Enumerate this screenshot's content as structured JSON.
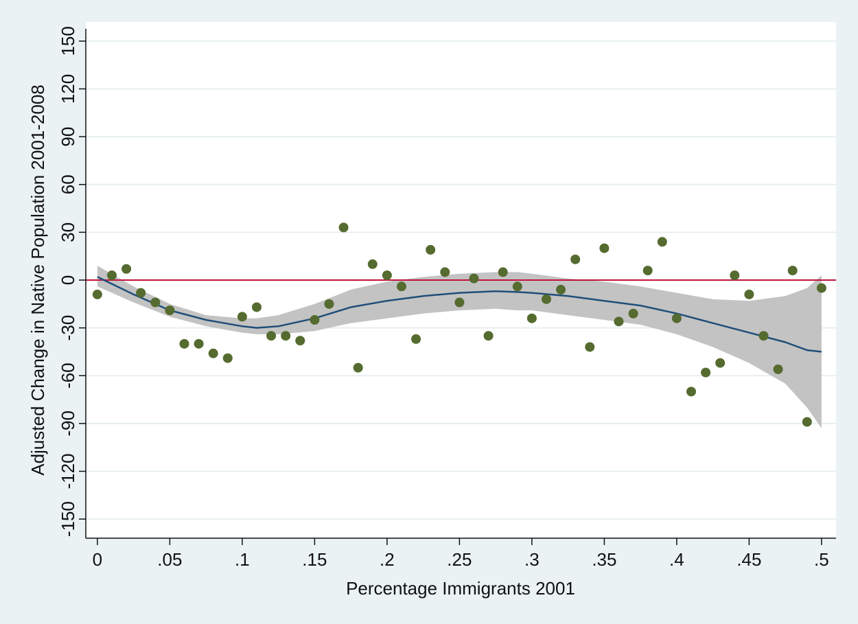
{
  "chart_data": {
    "type": "scatter",
    "xlabel": "Percentage Immigrants 2001",
    "ylabel": "Adjusted Change in Native Population 2001-2008",
    "xlim": [
      -0.008,
      0.51
    ],
    "ylim": [
      -162,
      162
    ],
    "x_ticks": [
      0,
      0.05,
      0.1,
      0.15,
      0.2,
      0.25,
      0.3,
      0.35,
      0.4,
      0.45,
      0.5
    ],
    "x_tick_labels": [
      "0",
      ".05",
      ".1",
      ".15",
      ".2",
      ".25",
      ".3",
      ".35",
      ".4",
      ".45",
      ".5"
    ],
    "y_ticks": [
      -150,
      -120,
      -90,
      -60,
      -30,
      0,
      30,
      60,
      90,
      120,
      150
    ],
    "y_tick_labels": [
      "-150",
      "-120",
      "-90",
      "-60",
      "-30",
      "0",
      "30",
      "60",
      "90",
      "120",
      "150"
    ],
    "grid": true,
    "reference_line": {
      "y": 0,
      "color": "#c0143c"
    },
    "series": [
      {
        "kind": "points",
        "color": "#556b2f",
        "x": [
          0,
          0.01,
          0.02,
          0.03,
          0.04,
          0.05,
          0.06,
          0.07,
          0.08,
          0.09,
          0.1,
          0.11,
          0.12,
          0.13,
          0.14,
          0.15,
          0.16,
          0.17,
          0.18,
          0.19,
          0.2,
          0.21,
          0.22,
          0.23,
          0.24,
          0.25,
          0.26,
          0.27,
          0.28,
          0.29,
          0.3,
          0.31,
          0.32,
          0.33,
          0.34,
          0.35,
          0.36,
          0.37,
          0.38,
          0.39,
          0.4,
          0.41,
          0.42,
          0.43,
          0.44,
          0.45,
          0.46,
          0.47,
          0.48,
          0.49,
          0.5
        ],
        "y": [
          -9,
          3,
          7,
          -8,
          -14,
          -19,
          -40,
          -40,
          -46,
          -49,
          -23,
          -17,
          -35,
          -35,
          -38,
          -25,
          -15,
          33,
          -55,
          10,
          3,
          -4,
          -37,
          19,
          5,
          -14,
          1,
          -35,
          5,
          -4,
          -24,
          -12,
          -6,
          13,
          -42,
          20,
          -26,
          -21,
          6,
          24,
          -24,
          -70,
          -58,
          -52,
          3,
          -9,
          -35,
          -56,
          6,
          -89,
          -5
        ]
      },
      {
        "kind": "fit",
        "color": "#1f4e79",
        "x": [
          0,
          0.025,
          0.05,
          0.075,
          0.1,
          0.11,
          0.125,
          0.15,
          0.175,
          0.2,
          0.225,
          0.25,
          0.275,
          0.29,
          0.3,
          0.325,
          0.35,
          0.375,
          0.4,
          0.425,
          0.45,
          0.475,
          0.49,
          0.5
        ],
        "y": [
          2,
          -9,
          -19,
          -25,
          -29,
          -30,
          -29,
          -24,
          -17,
          -13,
          -10,
          -8,
          -7,
          -7.5,
          -8,
          -10,
          -13,
          -16,
          -21,
          -27,
          -33,
          -39,
          -44,
          -45
        ],
        "ci_lower": [
          -4,
          -14,
          -23,
          -29,
          -33,
          -34,
          -34,
          -32,
          -27,
          -24,
          -21,
          -19,
          -18,
          -19,
          -19,
          -22,
          -25,
          -28,
          -34,
          -42,
          -52,
          -65,
          -80,
          -93
        ],
        "ci_upper": [
          9,
          -4,
          -15,
          -22,
          -24,
          -24,
          -22,
          -15,
          -6,
          -1,
          2,
          4,
          5,
          5,
          4,
          1,
          -1,
          -4,
          -8,
          -12,
          -13,
          -10,
          -5,
          3
        ],
        "ci_color": "#c3c3c3"
      }
    ]
  }
}
